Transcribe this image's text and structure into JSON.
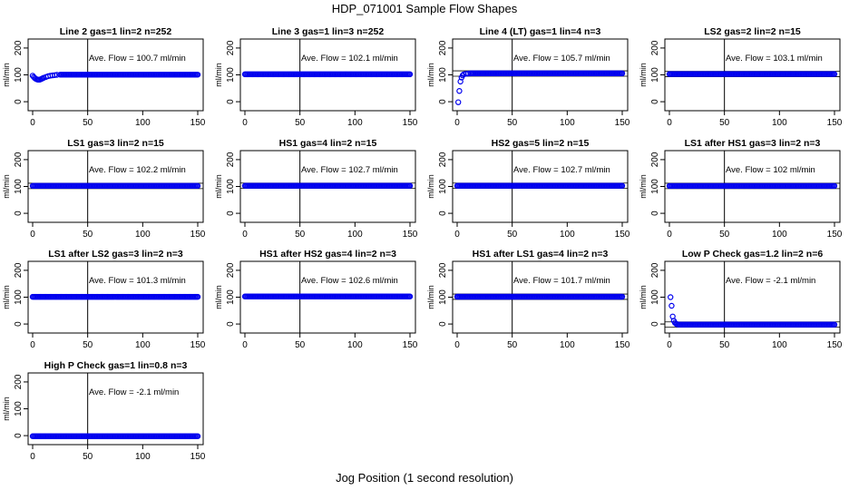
{
  "figure": {
    "title": "HDP_071001  Sample Flow Shapes",
    "xlabel": "Jog Position (1 second resolution)"
  },
  "chart_data": [
    {
      "type": "scatter",
      "title": "Line 2 gas=1 lin=2 n=252",
      "ylabel": "ml/min",
      "annotation": "Ave. Flow =  100.7  ml/min",
      "xlim": [
        0,
        150
      ],
      "ylim": [
        -20,
        220
      ],
      "x_ticks": [
        0,
        50,
        100,
        150
      ],
      "y_ticks": [
        0,
        100,
        200
      ],
      "vline_x": 50,
      "hlines_y": [],
      "series": [
        {
          "color": "#0000ee",
          "baseline": 100.7,
          "x": [
            0,
            1,
            2,
            3,
            4,
            5,
            6,
            7,
            8,
            9,
            10,
            12,
            14,
            16,
            18,
            20,
            22,
            25
          ],
          "y": [
            97,
            92,
            88,
            85,
            83,
            82,
            82,
            83,
            85,
            87,
            89,
            92,
            95,
            97,
            98,
            99,
            100,
            100.7
          ]
        }
      ]
    },
    {
      "type": "scatter",
      "title": "Line 3 gas=1 lin=3 n=252",
      "ylabel": "ml/min",
      "annotation": "Ave. Flow =  102.1  ml/min",
      "xlim": [
        0,
        150
      ],
      "ylim": [
        -20,
        220
      ],
      "x_ticks": [
        0,
        50,
        100,
        150
      ],
      "y_ticks": [
        0,
        100,
        200
      ],
      "vline_x": 50,
      "hlines_y": [],
      "series": [
        {
          "color": "#0000ee",
          "baseline": 102.1,
          "x": [],
          "y": []
        }
      ]
    },
    {
      "type": "scatter",
      "title": "Line 4 (LT) gas=1 lin=4 n=3",
      "ylabel": "ml/min",
      "annotation": "Ave. Flow =  105.7  ml/min",
      "xlim": [
        0,
        150
      ],
      "ylim": [
        -20,
        220
      ],
      "x_ticks": [
        0,
        50,
        100,
        150
      ],
      "y_ticks": [
        0,
        100,
        200
      ],
      "vline_x": 50,
      "hlines_y": [
        115,
        95
      ],
      "series": [
        {
          "color": "#0000ee",
          "baseline": 105.7,
          "x": [
            1,
            2,
            3,
            4,
            5,
            6,
            8,
            10,
            12
          ],
          "y": [
            -2,
            40,
            75,
            90,
            98,
            102,
            104,
            105,
            105.5
          ]
        }
      ]
    },
    {
      "type": "scatter",
      "title": "LS2 gas=2 lin=2 n=15",
      "ylabel": "ml/min",
      "annotation": "Ave. Flow =  103.1  ml/min",
      "xlim": [
        0,
        150
      ],
      "ylim": [
        -20,
        220
      ],
      "x_ticks": [
        0,
        50,
        100,
        150
      ],
      "y_ticks": [
        0,
        100,
        200
      ],
      "vline_x": 50,
      "hlines_y": [
        113,
        93
      ],
      "series": [
        {
          "color": "#0000ee",
          "baseline": 103.1,
          "x": [],
          "y": []
        }
      ]
    },
    {
      "type": "scatter",
      "title": "LS1 gas=3 lin=2 n=15",
      "ylabel": "ml/min",
      "annotation": "Ave. Flow =  102.2  ml/min",
      "xlim": [
        0,
        150
      ],
      "ylim": [
        -20,
        220
      ],
      "x_ticks": [
        0,
        50,
        100,
        150
      ],
      "y_ticks": [
        0,
        100,
        200
      ],
      "vline_x": 50,
      "hlines_y": [
        112,
        92
      ],
      "series": [
        {
          "color": "#0000ee",
          "baseline": 102.2,
          "x": [],
          "y": []
        }
      ]
    },
    {
      "type": "scatter",
      "title": "HS1 gas=4 lin=2 n=15",
      "ylabel": "ml/min",
      "annotation": "Ave. Flow =  102.7  ml/min",
      "xlim": [
        0,
        150
      ],
      "ylim": [
        -20,
        220
      ],
      "x_ticks": [
        0,
        50,
        100,
        150
      ],
      "y_ticks": [
        0,
        100,
        200
      ],
      "vline_x": 50,
      "hlines_y": [
        112.7,
        92.7
      ],
      "series": [
        {
          "color": "#0000ee",
          "baseline": 102.7,
          "x": [],
          "y": []
        }
      ]
    },
    {
      "type": "scatter",
      "title": "HS2 gas=5 lin=2 n=15",
      "ylabel": "ml/min",
      "annotation": "Ave. Flow =  102.7  ml/min",
      "xlim": [
        0,
        150
      ],
      "ylim": [
        -20,
        220
      ],
      "x_ticks": [
        0,
        50,
        100,
        150
      ],
      "y_ticks": [
        0,
        100,
        200
      ],
      "vline_x": 50,
      "hlines_y": [
        112.7,
        92.7
      ],
      "series": [
        {
          "color": "#0000ee",
          "baseline": 102.7,
          "x": [],
          "y": []
        }
      ]
    },
    {
      "type": "scatter",
      "title": "LS1 after HS1 gas=3 lin=2 n=3",
      "ylabel": "ml/min",
      "annotation": "Ave. Flow =  102  ml/min",
      "xlim": [
        0,
        150
      ],
      "ylim": [
        -20,
        220
      ],
      "x_ticks": [
        0,
        50,
        100,
        150
      ],
      "y_ticks": [
        0,
        100,
        200
      ],
      "vline_x": 50,
      "hlines_y": [
        112,
        92
      ],
      "series": [
        {
          "color": "#0000ee",
          "baseline": 102,
          "x": [],
          "y": []
        }
      ]
    },
    {
      "type": "scatter",
      "title": "LS1 after LS2 gas=3 lin=2 n=3",
      "ylabel": "ml/min",
      "annotation": "Ave. Flow =  101.3  ml/min",
      "xlim": [
        0,
        150
      ],
      "ylim": [
        -20,
        220
      ],
      "x_ticks": [
        0,
        50,
        100,
        150
      ],
      "y_ticks": [
        0,
        100,
        200
      ],
      "vline_x": 50,
      "hlines_y": [],
      "series": [
        {
          "color": "#0000ee",
          "baseline": 101.3,
          "x": [],
          "y": []
        }
      ]
    },
    {
      "type": "scatter",
      "title": "HS1 after HS2 gas=4 lin=2 n=3",
      "ylabel": "ml/min",
      "annotation": "Ave. Flow =  102.6  ml/min",
      "xlim": [
        0,
        150
      ],
      "ylim": [
        -20,
        220
      ],
      "x_ticks": [
        0,
        50,
        100,
        150
      ],
      "y_ticks": [
        0,
        100,
        200
      ],
      "vline_x": 50,
      "hlines_y": [],
      "series": [
        {
          "color": "#0000ee",
          "baseline": 102.6,
          "x": [],
          "y": []
        }
      ]
    },
    {
      "type": "scatter",
      "title": "HS1 after LS1 gas=4 lin=2 n=3",
      "ylabel": "ml/min",
      "annotation": "Ave. Flow =  101.7  ml/min",
      "xlim": [
        0,
        150
      ],
      "ylim": [
        -20,
        220
      ],
      "x_ticks": [
        0,
        50,
        100,
        150
      ],
      "y_ticks": [
        0,
        100,
        200
      ],
      "vline_x": 50,
      "hlines_y": [
        111.7,
        91.7
      ],
      "series": [
        {
          "color": "#0000ee",
          "baseline": 101.7,
          "x": [],
          "y": []
        }
      ]
    },
    {
      "type": "scatter",
      "title": "Low P Check gas=1.2 lin=2 n=6",
      "ylabel": "ml/min",
      "annotation": "Ave. Flow =  -2.1  ml/min",
      "xlim": [
        0,
        150
      ],
      "ylim": [
        -20,
        220
      ],
      "x_ticks": [
        0,
        50,
        100,
        150
      ],
      "y_ticks": [
        0,
        100,
        200
      ],
      "vline_x": 50,
      "hlines_y": [
        8,
        -12
      ],
      "series": [
        {
          "color": "#0000ee",
          "baseline": -2.1,
          "x": [
            1,
            2,
            3,
            4,
            5,
            6,
            7,
            8
          ],
          "y": [
            100,
            68,
            28,
            12,
            5,
            1,
            -1,
            -2
          ]
        }
      ]
    },
    {
      "type": "scatter",
      "title": "High P Check gas=1 lin=0.8 n=3",
      "ylabel": "ml/min",
      "annotation": "Ave. Flow =  -2.1  ml/min",
      "xlim": [
        0,
        150
      ],
      "ylim": [
        -20,
        220
      ],
      "x_ticks": [
        0,
        50,
        100,
        150
      ],
      "y_ticks": [
        0,
        100,
        200
      ],
      "vline_x": 50,
      "hlines_y": [],
      "series": [
        {
          "color": "#0000ee",
          "baseline": -2.1,
          "x": [],
          "y": []
        }
      ]
    }
  ]
}
